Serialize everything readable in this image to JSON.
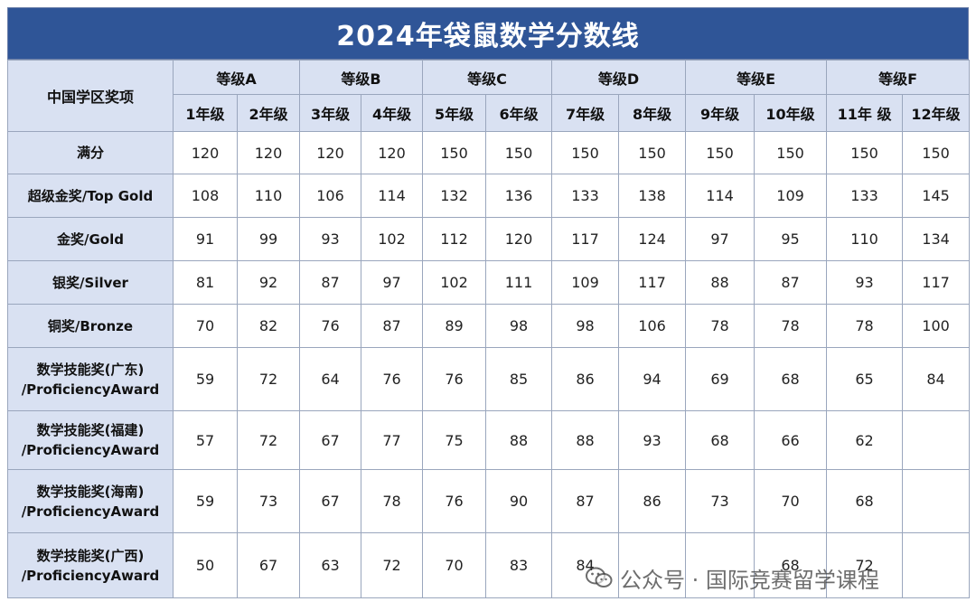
{
  "title": "2024年袋鼠数学分数线",
  "corner_label": "中国学区奖项",
  "levels": [
    {
      "label": "等级A",
      "grades": [
        "1年级",
        "2年级"
      ]
    },
    {
      "label": "等级B",
      "grades": [
        "3年级",
        "4年级"
      ]
    },
    {
      "label": "等级C",
      "grades": [
        "5年级",
        "6年级"
      ]
    },
    {
      "label": "等级D",
      "grades": [
        "7年级",
        "8年级"
      ]
    },
    {
      "label": "等级E",
      "grades": [
        "9年级",
        "10年级"
      ]
    },
    {
      "label": "等级F",
      "grades": [
        "11年 级",
        "12年级"
      ]
    }
  ],
  "rows": [
    {
      "label": [
        "满分"
      ],
      "values": [
        "120",
        "120",
        "120",
        "120",
        "150",
        "150",
        "150",
        "150",
        "150",
        "150",
        "150",
        "150"
      ]
    },
    {
      "label": [
        "超级金奖/Top Gold"
      ],
      "values": [
        "108",
        "110",
        "106",
        "114",
        "132",
        "136",
        "133",
        "138",
        "114",
        "109",
        "133",
        "145"
      ]
    },
    {
      "label": [
        "金奖/Gold"
      ],
      "values": [
        "91",
        "99",
        "93",
        "102",
        "112",
        "120",
        "117",
        "124",
        "97",
        "95",
        "110",
        "134"
      ]
    },
    {
      "label": [
        "银奖/Silver"
      ],
      "values": [
        "81",
        "92",
        "87",
        "97",
        "102",
        "111",
        "109",
        "117",
        "88",
        "87",
        "93",
        "117"
      ]
    },
    {
      "label": [
        "铜奖/Bronze"
      ],
      "values": [
        "70",
        "82",
        "76",
        "87",
        "89",
        "98",
        "98",
        "106",
        "78",
        "78",
        "78",
        "100"
      ]
    },
    {
      "label": [
        "数学技能奖(广东)",
        "/ProficiencyAward"
      ],
      "values": [
        "59",
        "72",
        "64",
        "76",
        "76",
        "85",
        "86",
        "94",
        "69",
        "68",
        "65",
        "84"
      ]
    },
    {
      "label": [
        "数学技能奖(福建)",
        "/ProficiencyAward"
      ],
      "values": [
        "57",
        "72",
        "67",
        "77",
        "75",
        "88",
        "88",
        "93",
        "68",
        "66",
        "62",
        ""
      ]
    },
    {
      "label": [
        "数学技能奖(海南)",
        "/ProficiencyAward"
      ],
      "values": [
        "59",
        "73",
        "67",
        "78",
        "76",
        "90",
        "87",
        "86",
        "73",
        "70",
        "68",
        ""
      ]
    },
    {
      "label": [
        "数学技能奖(广西)",
        "/ProficiencyAward"
      ],
      "values": [
        "50",
        "67",
        "63",
        "72",
        "70",
        "83",
        "84",
        "",
        "",
        "68",
        "72",
        ""
      ]
    }
  ],
  "watermark": {
    "text": "公众号 · 国际竞赛留学课程",
    "color": "#3c3c3c"
  },
  "colors": {
    "title_bg": "#2f5597",
    "header_bg": "#d9e1f2",
    "border": "#9aa6bd"
  }
}
